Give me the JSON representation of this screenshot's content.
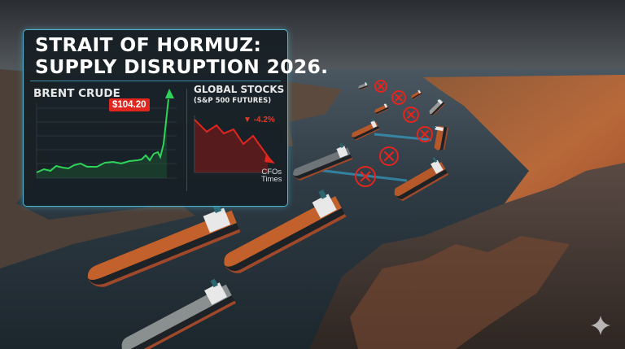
{
  "overlay": {
    "title_line1": "STRAIT OF HORMUZ:",
    "title_line2": "SUPPLY DISRUPTION 2026.",
    "brent_label": "BRENT CRUDE",
    "brent_price": "$104.20",
    "stocks_label": "GLOBAL STOCKS",
    "stocks_sublabel": "(S&P 500 FUTURES)",
    "stocks_change": "▼ -4.2%",
    "brand_line1": "CFOs",
    "brand_line2": "Times",
    "accent_color": "#4fb6cf",
    "up_color": "#2fd35a",
    "down_color": "#e0261f"
  },
  "scene": {
    "subject": "oil tankers in strait",
    "blockade_marker_icon": "red-x-circle",
    "watermark_icon": "sparkle"
  }
}
